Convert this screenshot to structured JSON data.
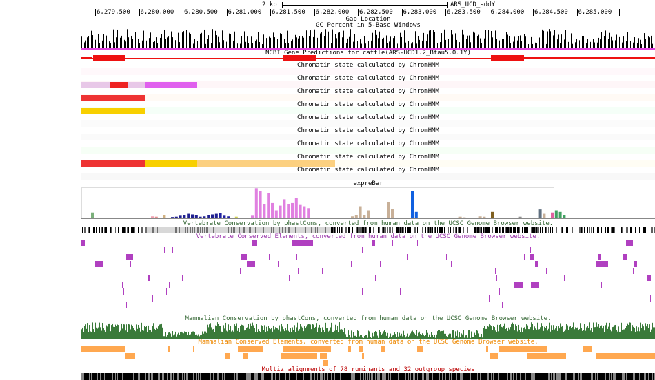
{
  "scale": {
    "label": "2 kb",
    "assembly": "ARS_UCD_addY"
  },
  "ruler": {
    "ticks": [
      "6,279,500",
      "6,280,000",
      "6,280,500",
      "6,281,000",
      "6,281,500",
      "6,282,000",
      "6,282,500",
      "6,283,000",
      "6,283,500",
      "6,284,000",
      "6,284,500",
      "6,285,000"
    ]
  },
  "tracks": {
    "gap": "Gap Location",
    "gc": "GC Percent in 5-Base Windows",
    "ncbi": "NCBI Gene Predictions for cattle(ARS-UCD1.2_Btau5.0.1Y)",
    "chromhmm": [
      "Chromatin state calculated by ChromHMM",
      "Chromatin state calculated by ChromHMM",
      "Chromatin state calculated by ChromHMM",
      "Chromatin state calculated by ChromHMM",
      "Chromatin state calculated by ChromHMM",
      "Chromatin state calculated by ChromHMM",
      "Chromatin state calculated by ChromHMM",
      "Chromatin state calculated by ChromHMM",
      "Chromatin state calculated by ChromHMM",
      "Chromatin state calculated by ChromHMM",
      "Chromatin state calculated by ChromHMM",
      "Chromatin state calculated by ChromHMM"
    ],
    "exprebar": "expreBar",
    "vert_cons": "Vertebrate Conservation by phastCons, converted from human data on the UCSC Genome Browser website.",
    "vert_elem": "Vertebrate Conserved Elements, converted from human data on the UCSC Genome Browser website.",
    "mamm_cons": "Mammalian Conservation by phastCons, converted from human data on the UCSC Genome Browser website.",
    "mamm_elem": "Mammalian Conserved Elements, converted from human data on the UCSC Genome Browser website.",
    "multiz": "Multiz alignments of 78 ruminants and 32 outgroup species"
  },
  "colors": {
    "gene": "#ee1111",
    "vert_elem": "#b040c0",
    "vert_elem_label": "#9933aa",
    "mamm_cons": "#3a7a3a",
    "mamm_elem": "#ffa850",
    "mamm_elem_label": "#ee8800",
    "vert_cons_label": "#336633",
    "mamm_cons_label": "#336633",
    "multiz_label": "#bb0000"
  },
  "expre_values": [
    0.18,
    0,
    0,
    0,
    0,
    0,
    0,
    0,
    0,
    0,
    0,
    0,
    0,
    0,
    0,
    0.06,
    0.05,
    0,
    0.1,
    0,
    0.04,
    0.05,
    0.08,
    0.1,
    0.14,
    0.12,
    0.1,
    0.05,
    0.06,
    0.1,
    0.12,
    0.14,
    0.16,
    0.08,
    0.06,
    0,
    0.05,
    0,
    0,
    0,
    0.08,
    0.95,
    0.85,
    0.45,
    0.8,
    0.48,
    0.25,
    0.4,
    0.6,
    0.45,
    0.48,
    0.65,
    0.42,
    0.38,
    0.32,
    0,
    0,
    0,
    0,
    0,
    0,
    0,
    0,
    0,
    0,
    0.06,
    0.1,
    0.38,
    0.1,
    0.25,
    0,
    0,
    0,
    0,
    0.5,
    0.3,
    0,
    0,
    0,
    0,
    0.85,
    0.2,
    0,
    0,
    0,
    0,
    0,
    0,
    0,
    0,
    0,
    0,
    0.05,
    0.03,
    0,
    0,
    0,
    0.06,
    0.05,
    0,
    0.2,
    0,
    0,
    0,
    0,
    0,
    0,
    0.05,
    0,
    0,
    0,
    0,
    0.28,
    0.14,
    0,
    0.18,
    0.25,
    0.2,
    0.1
  ],
  "expre_colors": [
    "#7bb07b",
    "#ccc",
    "#ccc",
    "#ccc",
    "#ccc",
    "#ccc",
    "#ccc",
    "#ccc",
    "#ccc",
    "#ccc",
    "#ccc",
    "#ccc",
    "#ccc",
    "#ccc",
    "#ccc",
    "#f0a0b0",
    "#e89090",
    "#ccc",
    "#d0b080",
    "#ccc",
    "#202090",
    "#202090",
    "#202090",
    "#202090",
    "#202090",
    "#202090",
    "#202090",
    "#202090",
    "#202090",
    "#202090",
    "#202090",
    "#202090",
    "#2020a0",
    "#2020a0",
    "#2020a0",
    "#ccc",
    "#d0d050",
    "#ccc",
    "#ccc",
    "#ccc",
    "#e080e0",
    "#e080e0",
    "#e080e0",
    "#e080e0",
    "#e080e0",
    "#e080e0",
    "#e080e0",
    "#e080e0",
    "#e080e0",
    "#e080e0",
    "#e080e0",
    "#e080e0",
    "#e080e0",
    "#e080e0",
    "#e080e0",
    "#ccc",
    "#ccc",
    "#ccc",
    "#ccc",
    "#ccc",
    "#ccc",
    "#ccc",
    "#ccc",
    "#ccc",
    "#ccc",
    "#c8b098",
    "#c8b098",
    "#c8b098",
    "#c8b098",
    "#c8b098",
    "#ccc",
    "#ccc",
    "#ccc",
    "#ccc",
    "#c8b098",
    "#c8b098",
    "#ccc",
    "#ccc",
    "#ccc",
    "#ccc",
    "#1060e0",
    "#1060e0",
    "#ccc",
    "#ccc",
    "#ccc",
    "#ccc",
    "#ccc",
    "#ccc",
    "#ccc",
    "#ccc",
    "#ccc",
    "#ccc",
    "#c8b098",
    "#c8b098",
    "#ccc",
    "#ccc",
    "#ccc",
    "#c8b098",
    "#c8b098",
    "#ccc",
    "#806020",
    "#ccc",
    "#ccc",
    "#ccc",
    "#ccc",
    "#ccc",
    "#ccc",
    "#909090",
    "#ccc",
    "#ccc",
    "#ccc",
    "#ccc",
    "#607080",
    "#c8b098",
    "#ccc",
    "#e060a0",
    "#40a060",
    "#40a060",
    "#40a060"
  ]
}
